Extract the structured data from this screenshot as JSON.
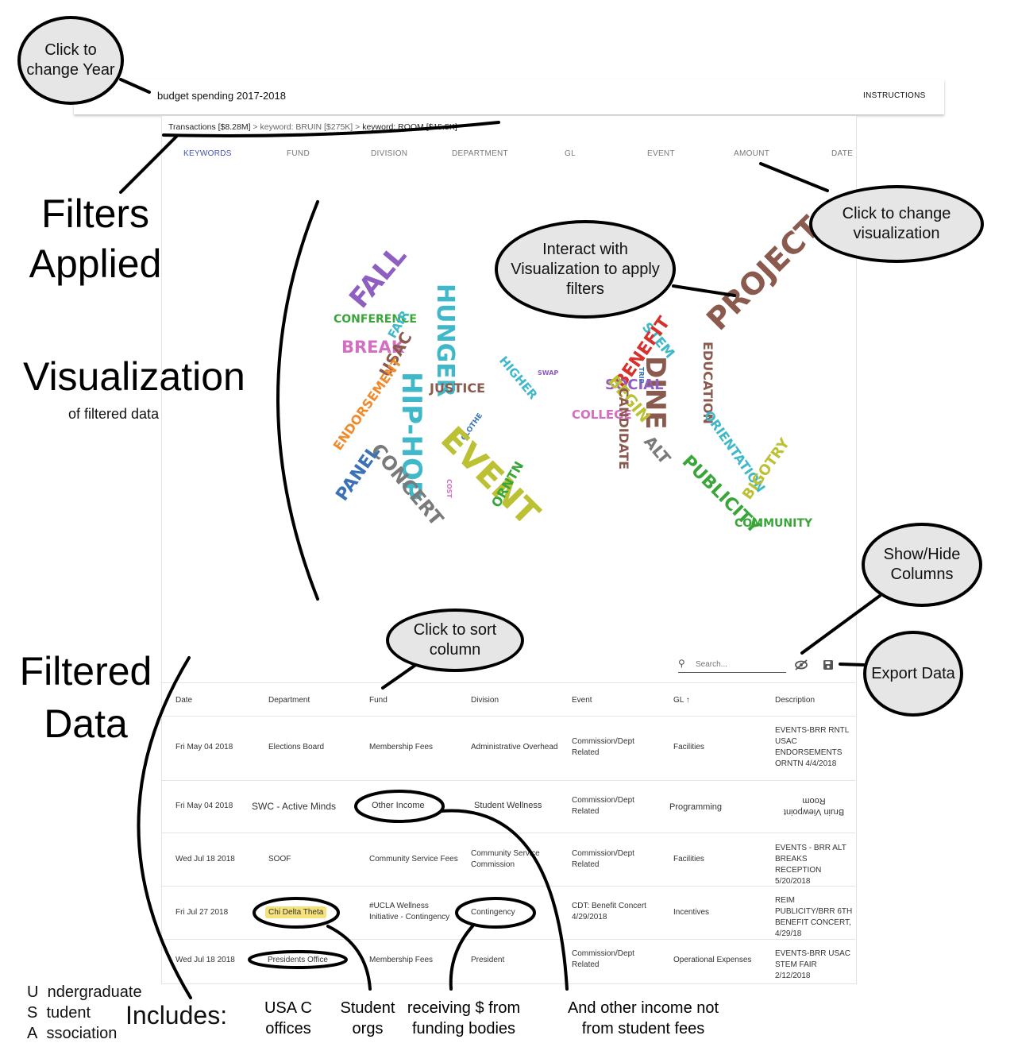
{
  "app": {
    "title": "budget spending 2017-2018",
    "instructions_label": "INSTRUCTIONS"
  },
  "breadcrumb": {
    "items": [
      "Transactions [$8.28M]",
      "keyword: BRUIN [$275K]",
      "keyword: ROOM [$15.5K]"
    ],
    "separator": ">"
  },
  "tabs": [
    "KEYWORDS",
    "FUND",
    "DIVISION",
    "DEPARTMENT",
    "GL",
    "EVENT",
    "AMOUNT",
    "DATE"
  ],
  "active_tab": "KEYWORDS",
  "wordcloud": {
    "words": [
      "FALL",
      "CONFERENCE",
      "FAIR",
      "BREAK",
      "USAC",
      "HUNGER",
      "JUSTICE",
      "HIP-HOP",
      "ENDORSEMENT",
      "CLOTHE",
      "EVENT",
      "CONCERT",
      "PANEL",
      "COST",
      "ORNTN",
      "HIGHER",
      "SWAP",
      "PROJECT",
      "STEM",
      "BENEFIT",
      "DINE",
      "SOCIAL",
      "TRIP",
      "BEGIN",
      "COLLEGE",
      "CANDIDATE",
      "ALT",
      "EDUCATION",
      "ORIENTATION",
      "PUBLICITY",
      "BIGOTRY",
      "COMMUNITY"
    ],
    "colors": {
      "purple": "#8e5fc0",
      "green": "#3aa639",
      "teal": "#3fb8c9",
      "pink": "#d36fc2",
      "brown": "#8a5a4e",
      "orange": "#f08a2a",
      "olive": "#bcc134",
      "blue": "#3a72b5",
      "gray": "#7a7a7a",
      "red": "#d8312c"
    }
  },
  "table": {
    "search_placeholder": "Search...",
    "columns": [
      "Date",
      "Department",
      "Fund",
      "Division",
      "Event",
      "GL",
      "Description"
    ],
    "sort_indicator": "↑",
    "rows": [
      {
        "date": "Fri May 04 2018",
        "department": "Elections Board",
        "fund": "Membership Fees",
        "division": "Administrative Overhead",
        "event": "Commission/Dept Related",
        "gl": "Facilities",
        "description": "EVENTS-BRR RNTL USAC ENDORSEMENTS ORNTN 4/4/2018"
      },
      {
        "date": "Fri May 04 2018",
        "department": "SWC - Active Minds",
        "fund": "Other Income",
        "division": "Student Wellness",
        "event": "Commission/Dept Related",
        "gl": "Programming",
        "description": "Bruin Viewpoint Room"
      },
      {
        "date": "Wed Jul 18 2018",
        "department": "SOOF",
        "fund": "Community Service Fees",
        "division": "Community Service Commission",
        "event": "Commission/Dept Related",
        "gl": "Facilities",
        "description": "EVENTS - BRR ALT BREAKS RECEPTION 5/20/2018"
      },
      {
        "date": "Fri Jul 27 2018",
        "department": "Chi Delta Theta",
        "fund": "#UCLA Wellness Initiative - Contingency",
        "division": "Contingency",
        "event": "CDT: Benefit Concert 4/29/2018",
        "gl": "Incentives",
        "description": "REIM PUBLICITY/BRR 6TH BENEFIT CONCERT, 4/29/18"
      },
      {
        "date": "Wed Jul 18 2018",
        "department": "Presidents Office",
        "fund": "Membership Fees",
        "division": "President",
        "event": "Commission/Dept Related",
        "gl": "Operational Expenses",
        "description": "EVENTS-BRR USAC STEM FAIR 2/12/2018"
      }
    ]
  },
  "annotations": {
    "change_year": "Click to change Year",
    "filters_applied": "Filters Applied",
    "change_viz": "Click to change visualization",
    "interact_viz": "Interact with Visualization to apply filters",
    "visualization": "Visualization",
    "visualization_sub": "of filtered data",
    "show_hide": "Show/Hide Columns",
    "sort": "Click to sort column",
    "export": "Export Data",
    "filtered_data": "Filtered Data",
    "usa_u": "U",
    "usa_u_rest": "ndergraduate",
    "usa_s": "S",
    "usa_s_rest": "tudent",
    "usa_a": "A",
    "usa_a_rest": "ssociation",
    "includes": "Includes:",
    "usac_offices": "USA C offices",
    "student_orgs": "Student orgs",
    "receiving": "receiving $ from funding bodies",
    "other_income": "And other income not from student fees"
  }
}
